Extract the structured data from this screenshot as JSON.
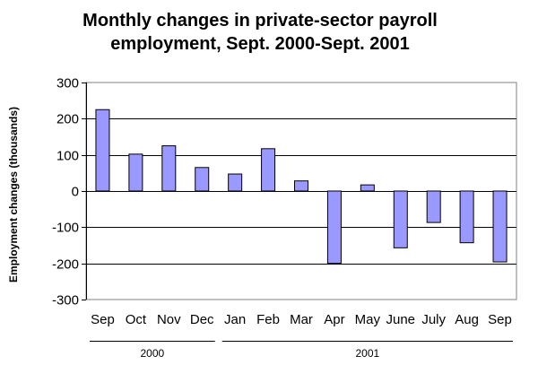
{
  "chart_data": {
    "type": "bar",
    "title_lines": [
      "Monthly changes in private-sector payroll",
      "employment, Sept. 2000-Sept. 2001"
    ],
    "ylabel": "Employment changes (thousands)",
    "xlabel": "",
    "ylim": [
      -300,
      300
    ],
    "yticks": [
      300,
      200,
      100,
      0,
      -100,
      -200,
      -300
    ],
    "ytick_labels": [
      "300",
      "200",
      "100",
      "0",
      "-100",
      "-200",
      "-300"
    ],
    "grid": true,
    "legend": "none",
    "bar_color": "#9999ff",
    "categories": [
      "Sep",
      "Oct",
      "Nov",
      "Dec",
      "Jan",
      "Feb",
      "Mar",
      "Apr",
      "May",
      "June",
      "July",
      "Aug",
      "Sep"
    ],
    "values": [
      225,
      102,
      125,
      65,
      47,
      117,
      28,
      -200,
      17,
      -157,
      -87,
      -143,
      -196
    ],
    "year_groups": [
      {
        "label": "2000",
        "count": 4
      },
      {
        "label": "2001",
        "count": 9
      }
    ]
  }
}
